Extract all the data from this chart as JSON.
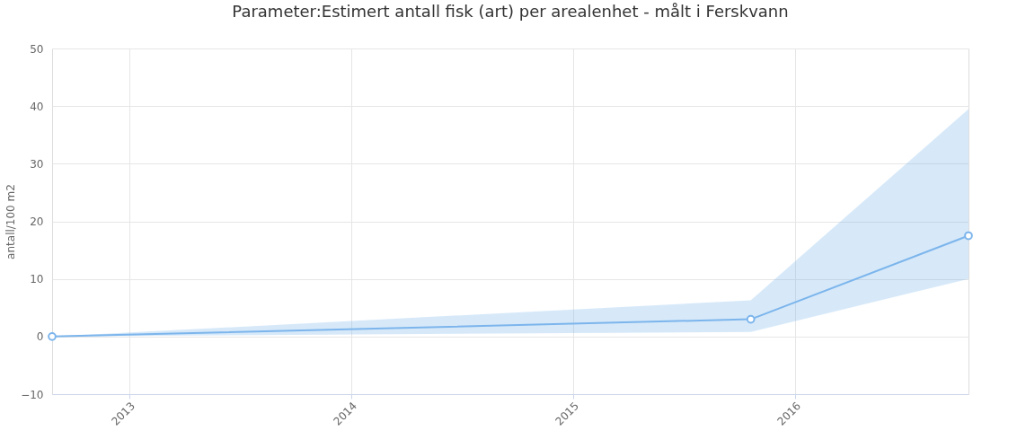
{
  "chart_data": {
    "type": "line",
    "title": "Parameter:Estimert antall fisk (art) per arealenhet - målt i Ferskvann",
    "ylabel": "antall/100 m2",
    "x": [
      "2012-08-27",
      "2015-10-20",
      "2016-10-12"
    ],
    "series": [
      {
        "color": "#7cb5ec",
        "values": [
          0,
          3,
          17.5
        ],
        "lower": [
          0,
          0.8,
          10
        ],
        "upper": [
          0,
          6.3,
          39.5
        ]
      }
    ],
    "xlim": [
      "2012-08-27",
      "2016-10-12"
    ],
    "xticks": [
      "2013",
      "2014",
      "2015",
      "2016"
    ],
    "ylim": [
      -10,
      50
    ],
    "yticks": [
      -10,
      0,
      10,
      20,
      30,
      40,
      50
    ],
    "grid": true,
    "legend": false,
    "marker": "circle",
    "line_style": "solid"
  }
}
